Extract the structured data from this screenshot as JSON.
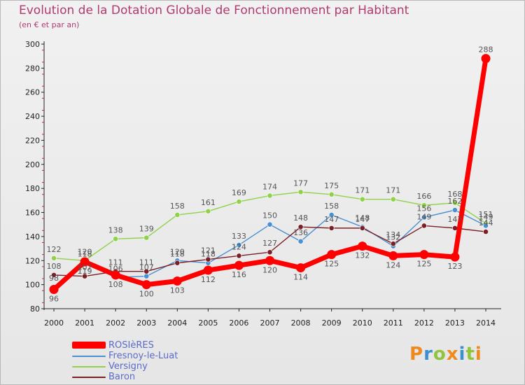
{
  "chart_data": {
    "type": "line",
    "title": "Evolution de la Dotation Globale de Fonctionnement par Habitant",
    "subtitle": "(en € et par an)",
    "xlabel": "",
    "ylabel": "",
    "categories": [
      "2000",
      "2001",
      "2002",
      "2003",
      "2004",
      "2005",
      "2006",
      "2007",
      "2008",
      "2009",
      "2010",
      "2011",
      "2012",
      "2013",
      "2014"
    ],
    "ylim": [
      80,
      300
    ],
    "yticks": [
      80,
      100,
      120,
      140,
      160,
      180,
      200,
      220,
      240,
      260,
      280,
      300
    ],
    "grid": false,
    "legend": "bottom-left",
    "series": [
      {
        "name": "ROSIèRES",
        "color": "#ff0000",
        "values": [
          96,
          119,
          108,
          100,
          103,
          112,
          116,
          120,
          114,
          125,
          132,
          124,
          125,
          123,
          288
        ],
        "labels": [
          "96",
          "119",
          "108",
          "100",
          "103",
          "112",
          "116",
          "120",
          "114",
          "125",
          "132",
          "124",
          "125",
          "123",
          "288"
        ]
      },
      {
        "name": "Fresnoy-le-Luat",
        "color": "#4a8fd0",
        "values": [
          98,
          118,
          106,
          107,
          120,
          118,
          133,
          150,
          136,
          158,
          148,
          132,
          156,
          162,
          149
        ],
        "labels": [
          "98",
          "118",
          "106",
          "107",
          "120",
          "118",
          "133",
          "150",
          "136",
          "158",
          "148",
          "132",
          "156",
          "162",
          "149"
        ]
      },
      {
        "name": "Versigny",
        "color": "#8fd24a",
        "values": [
          122,
          120,
          138,
          139,
          158,
          161,
          169,
          174,
          177,
          175,
          171,
          171,
          166,
          168,
          151
        ],
        "labels": [
          "122",
          "120",
          "138",
          "139",
          "158",
          "161",
          "169",
          "174",
          "177",
          "175",
          "171",
          "171",
          "166",
          "168",
          "151"
        ]
      },
      {
        "name": "Baron",
        "color": "#7a1f25",
        "values": [
          108,
          107,
          111,
          111,
          118,
          121,
          124,
          127,
          148,
          147,
          147,
          134,
          149,
          147,
          144
        ],
        "labels": [
          "108",
          "107",
          "111",
          "111",
          "118",
          "121",
          "124",
          "127",
          "148",
          "147",
          "147",
          "134",
          "149",
          "147",
          "144"
        ]
      }
    ],
    "label_color": "#555555"
  },
  "logo": {
    "letters": [
      "P",
      "r",
      "o",
      "x",
      "i",
      "t",
      "i"
    ],
    "colors": [
      "#ef8a1e",
      "#3c8fd0",
      "#8fc43c",
      "#ef8a1e",
      "#3c8fd0",
      "#8fc43c",
      "#ef8a1e"
    ]
  },
  "colors": {
    "axis": "#222222",
    "title": "#b03a6e",
    "legend_text": "#5a6bc8",
    "tick_mark": "#cc2244"
  }
}
